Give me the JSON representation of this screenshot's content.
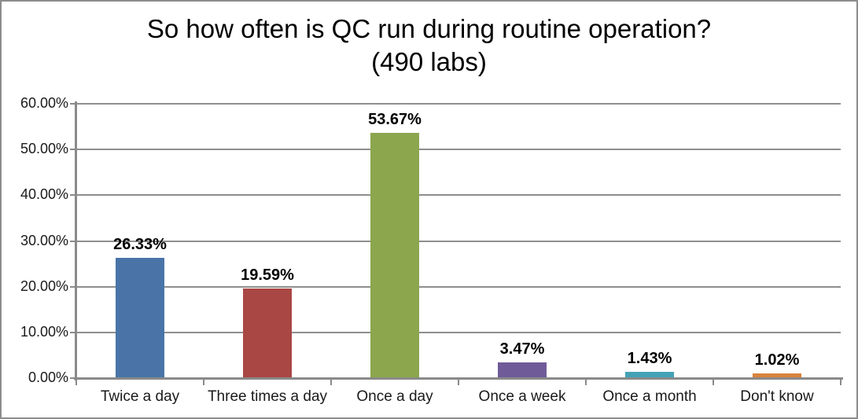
{
  "frame": {
    "background": "#ffffff",
    "border_color": "#8C8C8C"
  },
  "chart_data": {
    "type": "bar",
    "title": "So how often is QC run during routine operation?",
    "subtitle": "(490 labs)",
    "categories": [
      "Twice a day",
      "Three times a day",
      "Once a day",
      "Once a week",
      "Once a month",
      "Don't know"
    ],
    "values": [
      26.33,
      19.59,
      53.67,
      3.47,
      1.43,
      1.02
    ],
    "value_labels": [
      "26.33%",
      "19.59%",
      "53.67%",
      "3.47%",
      "1.43%",
      "1.02%"
    ],
    "bar_colors": [
      "#4A74A8",
      "#A94744",
      "#8CA64E",
      "#6E5B98",
      "#45A2B5",
      "#D9833C"
    ],
    "ylim": [
      0,
      60
    ],
    "ytick_step": 10,
    "ytick_labels": [
      "0.00%",
      "10.00%",
      "20.00%",
      "30.00%",
      "40.00%",
      "50.00%",
      "60.00%"
    ],
    "grid": "horizontal",
    "legend": "none",
    "gridline_color": "#8E8E8E",
    "axis_color": "#8A8A8A",
    "data_label_color": "#000000"
  }
}
